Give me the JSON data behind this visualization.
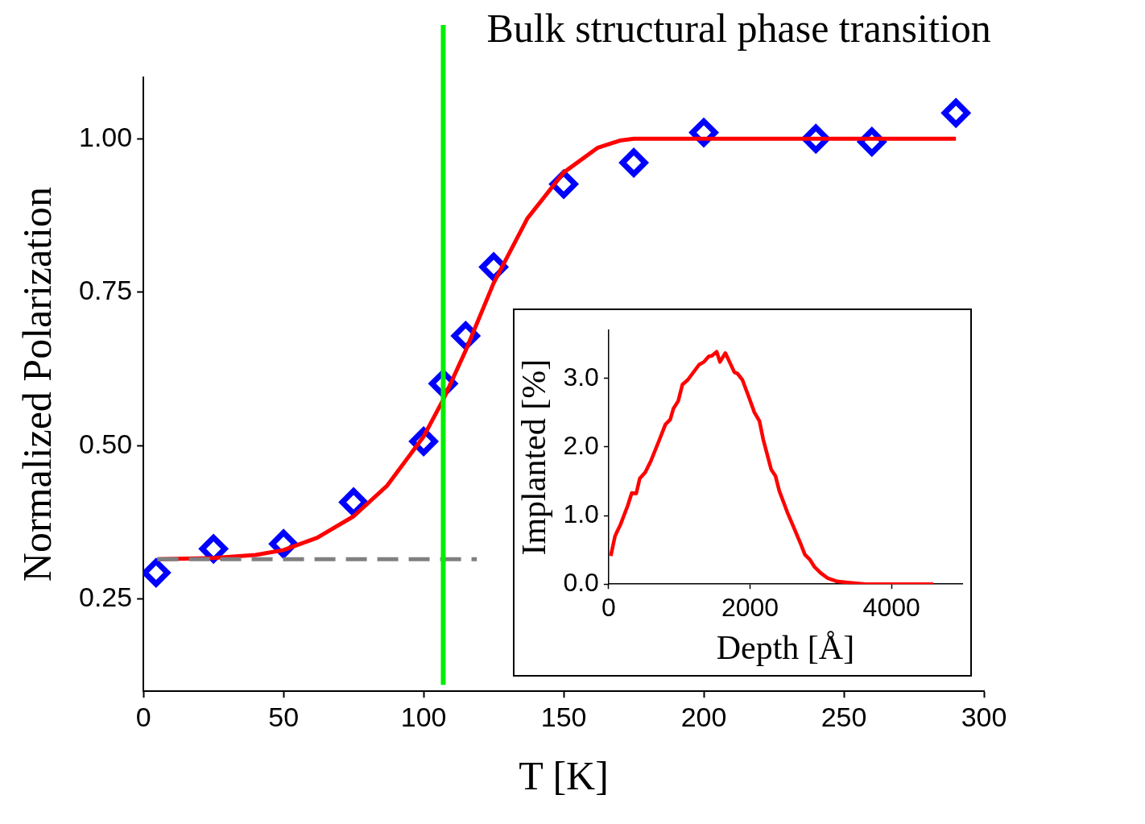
{
  "chart_data": [
    {
      "type": "scatter",
      "xlabel": "T [K]",
      "ylabel": "Normalized Polarization",
      "xlim": [
        0,
        300
      ],
      "xticks": [
        0,
        50,
        100,
        150,
        200,
        250,
        300
      ],
      "ylim": [
        0.1,
        1.1
      ],
      "yticks": [
        {
          "value": 0.25,
          "label": "0.25"
        },
        {
          "value": 0.5,
          "label": "0.50"
        },
        {
          "value": 0.75,
          "label": "0.75"
        },
        {
          "value": 1,
          "label": "1.00"
        }
      ],
      "grid": false,
      "legend": false,
      "series": [
        {
          "type": "scatter",
          "marker": "diamond",
          "color": "#0000ff",
          "x": [
            4.5,
            25,
            50,
            75,
            100,
            107,
            115,
            125,
            150,
            175,
            200,
            240,
            260,
            290
          ],
          "values": [
            0.293,
            0.332,
            0.34,
            0.408,
            0.507,
            0.601,
            0.679,
            0.791,
            0.926,
            0.961,
            1.01,
            1.0,
            0.995,
            1.042
          ]
        },
        {
          "type": "line",
          "color": "#ff0000",
          "x": [
            5,
            25,
            40,
            50,
            62,
            75,
            87,
            100,
            107,
            115,
            125,
            137,
            150,
            162,
            170,
            175,
            290
          ],
          "values": [
            0.315,
            0.317,
            0.322,
            0.33,
            0.35,
            0.385,
            0.435,
            0.515,
            0.575,
            0.655,
            0.765,
            0.87,
            0.945,
            0.985,
            0.997,
            1.0,
            1.0
          ]
        },
        {
          "type": "line",
          "color": "#808080",
          "line_style": "dashed",
          "x": [
            5,
            119
          ],
          "values": [
            0.315,
            0.315
          ]
        }
      ],
      "ref_lines": [
        {
          "axis": "x",
          "value": 107,
          "label": "Bulk structural phase transition",
          "color": "#00ee00"
        }
      ]
    },
    {
      "type": "line",
      "xlabel": "Depth [Å]",
      "ylabel": "Implanted [%]",
      "xlim": [
        0,
        5000
      ],
      "xticks": [
        0,
        2000,
        4000
      ],
      "ylim": [
        0,
        3.7
      ],
      "yticks": [
        {
          "value": 0,
          "label": "0.0"
        },
        {
          "value": 1,
          "label": "1.0"
        },
        {
          "value": 2,
          "label": "2.0"
        },
        {
          "value": 3,
          "label": "3.0"
        }
      ],
      "grid": false,
      "legend": false,
      "series": [
        {
          "color": "#ff0000",
          "x": [
            30,
            90,
            168,
            272,
            327,
            390,
            440,
            517,
            599,
            712,
            803,
            871,
            916,
            984,
            1043,
            1120,
            1279,
            1347,
            1415,
            1460,
            1528,
            1574,
            1651,
            1710,
            1778,
            1823,
            1891,
            1982,
            2059,
            2132,
            2186,
            2299,
            2358,
            2413,
            2526,
            2617,
            2707,
            2776,
            2844,
            2912,
            3002,
            3093,
            3229,
            3410,
            3637,
            4590
          ],
          "values": [
            0.41,
            0.7,
            0.87,
            1.15,
            1.33,
            1.32,
            1.54,
            1.63,
            1.8,
            2.09,
            2.33,
            2.4,
            2.56,
            2.67,
            2.91,
            2.98,
            3.2,
            3.24,
            3.32,
            3.33,
            3.39,
            3.24,
            3.37,
            3.24,
            3.09,
            3.07,
            2.98,
            2.73,
            2.51,
            2.38,
            2.11,
            1.67,
            1.58,
            1.36,
            1.05,
            0.83,
            0.61,
            0.43,
            0.36,
            0.25,
            0.16,
            0.09,
            0.04,
            0.02,
            0.0,
            0.0
          ]
        }
      ]
    }
  ]
}
